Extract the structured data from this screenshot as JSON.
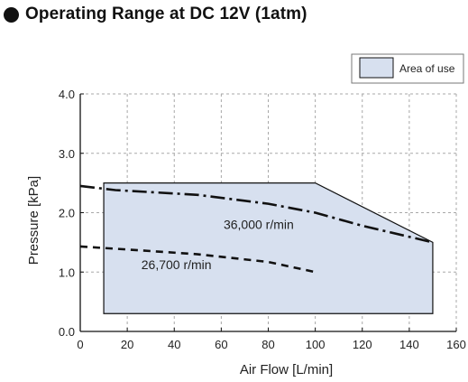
{
  "title": "Operating Range at DC 12V (1atm)",
  "legend": {
    "label": "Area of use",
    "fill": "#d7e0ef"
  },
  "chart_data": {
    "type": "line",
    "title": "Operating Range at DC 12V (1atm)",
    "xlabel": "Air Flow [L/min]",
    "ylabel": "Pressure [kPa]",
    "xlim": [
      0,
      160
    ],
    "ylim": [
      0.0,
      4.0
    ],
    "xticks": [
      "0",
      "20",
      "40",
      "60",
      "80",
      "100",
      "120",
      "140",
      "160"
    ],
    "yticks": [
      "0.0",
      "1.0",
      "2.0",
      "3.0",
      "4.0"
    ],
    "grid": true,
    "legend_position": "top-right",
    "area_of_use": [
      [
        10,
        0.3
      ],
      [
        10,
        2.5
      ],
      [
        100,
        2.5
      ],
      [
        150,
        1.5
      ],
      [
        150,
        0.3
      ]
    ],
    "series": [
      {
        "name": "36,000 r/min",
        "style": "dash-dot",
        "points": [
          [
            0,
            2.45
          ],
          [
            15,
            2.38
          ],
          [
            50,
            2.3
          ],
          [
            80,
            2.15
          ],
          [
            100,
            2.0
          ],
          [
            120,
            1.78
          ],
          [
            150,
            1.5
          ]
        ]
      },
      {
        "name": "26,700 r/min",
        "style": "dashed",
        "points": [
          [
            0,
            1.43
          ],
          [
            20,
            1.38
          ],
          [
            50,
            1.3
          ],
          [
            80,
            1.17
          ],
          [
            100,
            1.0
          ]
        ]
      }
    ],
    "colors": {
      "area": "#d7e0ef",
      "line": "#111111",
      "grid": "#a8a8a8"
    }
  }
}
